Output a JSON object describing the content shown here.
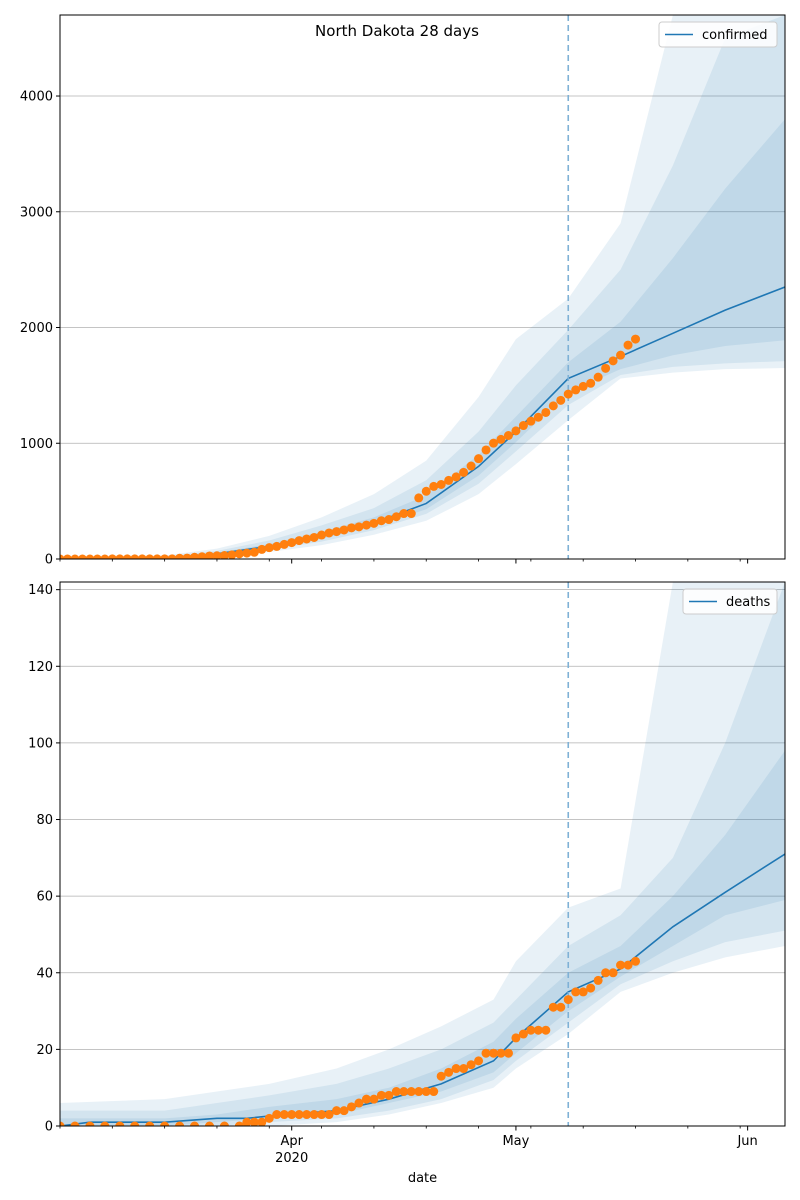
{
  "chart_data": [
    {
      "type": "line",
      "title": "North Dakota 28 days",
      "xlabel": "",
      "ylabel": "",
      "x_range": [
        "2020-03-01",
        "2020-06-06"
      ],
      "ylim": [
        0,
        4700
      ],
      "yticks": [
        0,
        1000,
        2000,
        3000,
        4000
      ],
      "grid": "horizontal",
      "legend_position": "top-right",
      "forecast_start": "2020-05-08",
      "colors": {
        "line": "#1f77b4",
        "band": "#1f77b4",
        "points": "#ff7f0e",
        "vline": "#7fb1d6"
      },
      "series": [
        {
          "name": "confirmed",
          "x": [
            "2020-03-01",
            "2020-03-08",
            "2020-03-15",
            "2020-03-22",
            "2020-03-29",
            "2020-04-05",
            "2020-04-12",
            "2020-04-19",
            "2020-04-26",
            "2020-05-01",
            "2020-05-08",
            "2020-05-15",
            "2020-05-22",
            "2020-05-29",
            "2020-06-06"
          ],
          "values": [
            0,
            0,
            5,
            45,
            110,
            200,
            310,
            480,
            800,
            1100,
            1560,
            1750,
            1950,
            2150,
            2350
          ]
        }
      ],
      "bands": [
        {
          "level": "outer",
          "x": [
            "2020-03-01",
            "2020-03-08",
            "2020-03-15",
            "2020-03-22",
            "2020-03-29",
            "2020-04-05",
            "2020-04-12",
            "2020-04-19",
            "2020-04-26",
            "2020-05-01",
            "2020-05-08",
            "2020-05-15",
            "2020-05-22",
            "2020-05-29",
            "2020-06-06"
          ],
          "lower": [
            0,
            0,
            0,
            20,
            60,
            120,
            210,
            330,
            560,
            820,
            1200,
            1560,
            1610,
            1640,
            1650
          ],
          "upper": [
            0,
            10,
            30,
            90,
            200,
            360,
            560,
            850,
            1400,
            1900,
            2250,
            2900,
            4700,
            4700,
            4700
          ]
        },
        {
          "level": "middle",
          "x": [
            "2020-03-01",
            "2020-03-08",
            "2020-03-15",
            "2020-03-22",
            "2020-03-29",
            "2020-04-05",
            "2020-04-12",
            "2020-04-19",
            "2020-04-26",
            "2020-05-01",
            "2020-05-08",
            "2020-05-15",
            "2020-05-22",
            "2020-05-29",
            "2020-06-06"
          ],
          "lower": [
            0,
            0,
            0,
            30,
            80,
            150,
            250,
            390,
            650,
            930,
            1330,
            1590,
            1660,
            1690,
            1710
          ],
          "upper": [
            0,
            5,
            20,
            70,
            160,
            290,
            440,
            680,
            1100,
            1500,
            1980,
            2500,
            3400,
            4500,
            4700
          ]
        },
        {
          "level": "inner",
          "x": [
            "2020-03-01",
            "2020-03-08",
            "2020-03-15",
            "2020-03-22",
            "2020-03-29",
            "2020-04-05",
            "2020-04-12",
            "2020-04-19",
            "2020-04-26",
            "2020-05-01",
            "2020-05-08",
            "2020-05-15",
            "2020-05-22",
            "2020-05-29",
            "2020-06-06"
          ],
          "lower": [
            0,
            0,
            0,
            38,
            95,
            175,
            280,
            430,
            720,
            1010,
            1440,
            1640,
            1760,
            1840,
            1890
          ],
          "upper": [
            0,
            2,
            12,
            55,
            130,
            235,
            360,
            550,
            900,
            1230,
            1700,
            2050,
            2600,
            3200,
            3800
          ]
        }
      ],
      "observed": {
        "name": "observed",
        "x": [
          "2020-03-01",
          "2020-03-02",
          "2020-03-03",
          "2020-03-04",
          "2020-03-05",
          "2020-03-06",
          "2020-03-07",
          "2020-03-08",
          "2020-03-09",
          "2020-03-10",
          "2020-03-11",
          "2020-03-12",
          "2020-03-13",
          "2020-03-14",
          "2020-03-15",
          "2020-03-16",
          "2020-03-17",
          "2020-03-18",
          "2020-03-19",
          "2020-03-20",
          "2020-03-21",
          "2020-03-22",
          "2020-03-23",
          "2020-03-24",
          "2020-03-25",
          "2020-03-26",
          "2020-03-27",
          "2020-03-28",
          "2020-03-29",
          "2020-03-30",
          "2020-03-31",
          "2020-04-01",
          "2020-04-02",
          "2020-04-03",
          "2020-04-04",
          "2020-04-05",
          "2020-04-06",
          "2020-04-07",
          "2020-04-08",
          "2020-04-09",
          "2020-04-10",
          "2020-04-11",
          "2020-04-12",
          "2020-04-13",
          "2020-04-14",
          "2020-04-15",
          "2020-04-16",
          "2020-04-17",
          "2020-04-18",
          "2020-04-19",
          "2020-04-20",
          "2020-04-21",
          "2020-04-22",
          "2020-04-23",
          "2020-04-24",
          "2020-04-25",
          "2020-04-26",
          "2020-04-27",
          "2020-04-28",
          "2020-04-29",
          "2020-04-30",
          "2020-05-01",
          "2020-05-02",
          "2020-05-03",
          "2020-05-04",
          "2020-05-05",
          "2020-05-06",
          "2020-05-07",
          "2020-05-08",
          "2020-05-09",
          "2020-05-10",
          "2020-05-11",
          "2020-05-12",
          "2020-05-13",
          "2020-05-14",
          "2020-05-15",
          "2020-05-16",
          "2020-05-17"
        ],
        "values": [
          0,
          0,
          0,
          0,
          0,
          0,
          0,
          1,
          1,
          1,
          1,
          1,
          1,
          1,
          1,
          1,
          6,
          8,
          15,
          19,
          26,
          28,
          30,
          36,
          45,
          51,
          58,
          83,
          98,
          109,
          126,
          142,
          159,
          173,
          186,
          207,
          225,
          237,
          251,
          269,
          278,
          293,
          308,
          331,
          341,
          365,
          393,
          393,
          528,
          585,
          627,
          644,
          679,
          709,
          748,
          803,
          867,
          942,
          1001,
          1033,
          1067,
          1107,
          1153,
          1191,
          1225,
          1266,
          1323,
          1371,
          1425,
          1461,
          1491,
          1518,
          1571,
          1647,
          1712,
          1761,
          1848,
          1900
        ]
      }
    },
    {
      "type": "line",
      "title": "",
      "xlabel": "date",
      "ylabel": "",
      "x_range": [
        "2020-03-01",
        "2020-06-06"
      ],
      "ylim": [
        0,
        142
      ],
      "yticks": [
        0,
        20,
        40,
        60,
        80,
        100,
        120,
        140
      ],
      "xticks": [
        {
          "date": "2020-04-01",
          "label": "Apr",
          "sublabel": "2020"
        },
        {
          "date": "2020-05-01",
          "label": "May",
          "sublabel": ""
        },
        {
          "date": "2020-06-01",
          "label": "Jun",
          "sublabel": ""
        }
      ],
      "grid": "horizontal",
      "legend_position": "top-right",
      "forecast_start": "2020-05-08",
      "colors": {
        "line": "#1f77b4",
        "band": "#1f77b4",
        "points": "#ff7f0e",
        "vline": "#7fb1d6"
      },
      "series": [
        {
          "name": "deaths",
          "x": [
            "2020-03-01",
            "2020-03-05",
            "2020-03-15",
            "2020-03-22",
            "2020-03-26",
            "2020-03-31",
            "2020-04-07",
            "2020-04-14",
            "2020-04-21",
            "2020-04-28",
            "2020-05-01",
            "2020-05-08",
            "2020-05-15",
            "2020-05-22",
            "2020-05-29",
            "2020-06-06"
          ],
          "values": [
            0,
            1,
            1,
            2,
            2,
            3,
            4,
            7,
            11,
            17,
            23,
            35,
            41,
            52,
            61,
            71
          ]
        }
      ],
      "bands": [
        {
          "level": "outer",
          "x": [
            "2020-03-01",
            "2020-03-15",
            "2020-03-22",
            "2020-03-29",
            "2020-04-07",
            "2020-04-14",
            "2020-04-21",
            "2020-04-28",
            "2020-05-01",
            "2020-05-08",
            "2020-05-15",
            "2020-05-22",
            "2020-05-29",
            "2020-06-06"
          ],
          "lower": [
            0,
            0,
            0,
            0,
            1,
            3,
            6,
            10,
            15,
            24,
            35,
            40,
            44,
            47
          ],
          "upper": [
            6,
            7,
            9,
            11,
            15,
            20,
            26,
            33,
            43,
            57,
            62,
            142,
            142,
            142
          ]
        },
        {
          "level": "middle",
          "x": [
            "2020-03-01",
            "2020-03-15",
            "2020-03-22",
            "2020-03-29",
            "2020-04-07",
            "2020-04-14",
            "2020-04-21",
            "2020-04-28",
            "2020-05-01",
            "2020-05-08",
            "2020-05-15",
            "2020-05-22",
            "2020-05-29",
            "2020-06-06"
          ],
          "lower": [
            0,
            0,
            0,
            1,
            2,
            4,
            7,
            12,
            17,
            27,
            37,
            43,
            48,
            51
          ],
          "upper": [
            4,
            4,
            6,
            8,
            11,
            15,
            20,
            27,
            33,
            47,
            55,
            70,
            100,
            142
          ]
        },
        {
          "level": "inner",
          "x": [
            "2020-03-01",
            "2020-03-15",
            "2020-03-22",
            "2020-03-29",
            "2020-04-07",
            "2020-04-14",
            "2020-04-21",
            "2020-04-28",
            "2020-05-01",
            "2020-05-08",
            "2020-05-15",
            "2020-05-22",
            "2020-05-29",
            "2020-06-06"
          ],
          "lower": [
            0,
            0,
            1,
            2,
            3,
            6,
            9,
            14,
            19,
            30,
            39,
            47,
            55,
            59
          ],
          "upper": [
            2,
            2,
            3,
            5,
            7,
            10,
            15,
            22,
            28,
            40,
            47,
            60,
            76,
            98
          ]
        }
      ],
      "observed": {
        "name": "observed",
        "x": [
          "2020-03-01",
          "2020-03-03",
          "2020-03-05",
          "2020-03-07",
          "2020-03-09",
          "2020-03-11",
          "2020-03-13",
          "2020-03-15",
          "2020-03-17",
          "2020-03-19",
          "2020-03-21",
          "2020-03-23",
          "2020-03-25",
          "2020-03-26",
          "2020-03-27",
          "2020-03-28",
          "2020-03-29",
          "2020-03-30",
          "2020-03-31",
          "2020-04-01",
          "2020-04-02",
          "2020-04-03",
          "2020-04-04",
          "2020-04-05",
          "2020-04-06",
          "2020-04-07",
          "2020-04-08",
          "2020-04-09",
          "2020-04-10",
          "2020-04-11",
          "2020-04-12",
          "2020-04-13",
          "2020-04-14",
          "2020-04-15",
          "2020-04-16",
          "2020-04-17",
          "2020-04-18",
          "2020-04-19",
          "2020-04-20",
          "2020-04-21",
          "2020-04-22",
          "2020-04-23",
          "2020-04-24",
          "2020-04-25",
          "2020-04-26",
          "2020-04-27",
          "2020-04-28",
          "2020-04-29",
          "2020-04-30",
          "2020-05-01",
          "2020-05-02",
          "2020-05-03",
          "2020-05-04",
          "2020-05-05",
          "2020-05-06",
          "2020-05-07",
          "2020-05-08",
          "2020-05-09",
          "2020-05-10",
          "2020-05-11",
          "2020-05-12",
          "2020-05-13",
          "2020-05-14",
          "2020-05-15",
          "2020-05-16",
          "2020-05-17"
        ],
        "values": [
          0,
          0,
          0,
          0,
          0,
          0,
          0,
          0,
          0,
          0,
          0,
          0,
          0,
          1,
          1,
          1,
          2,
          3,
          3,
          3,
          3,
          3,
          3,
          3,
          3,
          4,
          4,
          5,
          6,
          7,
          7,
          8,
          8,
          9,
          9,
          9,
          9,
          9,
          9,
          13,
          14,
          15,
          15,
          16,
          17,
          19,
          19,
          19,
          19,
          23,
          24,
          25,
          25,
          25,
          31,
          31,
          33,
          35,
          35,
          36,
          38,
          40,
          40,
          42,
          42,
          43
        ]
      }
    }
  ]
}
